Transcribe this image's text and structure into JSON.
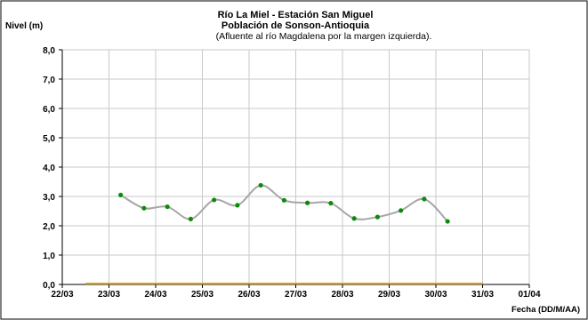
{
  "chart_data": {
    "type": "line",
    "title_lines": [
      "Río La Miel  - Estación San Miguel",
      "Población de Sonson-Antioquia",
      "(Afluente al río Magdalena por la margen izquierda)."
    ],
    "ylabel": "Nivel (m)",
    "xlabel": "Fecha (DD/M/AA)",
    "ylim": [
      0,
      8
    ],
    "y_ticks": [
      "0,0",
      "1,0",
      "2,0",
      "3,0",
      "4,0",
      "5,0",
      "6,0",
      "7,0",
      "8,0"
    ],
    "x_ticks": [
      "22/03",
      "23/03",
      "24/03",
      "25/03",
      "26/03",
      "27/03",
      "28/03",
      "29/03",
      "30/03",
      "31/03",
      "01/04"
    ],
    "grid": true,
    "series": [
      {
        "line_color": "#a6a6a6",
        "marker_color": "#0a8c0a",
        "points": [
          {
            "x": "23/03 06:00",
            "y": 3.05
          },
          {
            "x": "23/03 18:00",
            "y": 2.6
          },
          {
            "x": "24/03 06:00",
            "y": 2.65
          },
          {
            "x": "24/03 18:00",
            "y": 2.23
          },
          {
            "x": "25/03 06:00",
            "y": 2.88
          },
          {
            "x": "25/03 18:00",
            "y": 2.7
          },
          {
            "x": "26/03 06:00",
            "y": 3.38
          },
          {
            "x": "26/03 18:00",
            "y": 2.87
          },
          {
            "x": "27/03 06:00",
            "y": 2.78
          },
          {
            "x": "27/03 18:00",
            "y": 2.77
          },
          {
            "x": "28/03 06:00",
            "y": 2.25
          },
          {
            "x": "28/03 18:00",
            "y": 2.3
          },
          {
            "x": "29/03 06:00",
            "y": 2.52
          },
          {
            "x": "29/03 18:00",
            "y": 2.91
          },
          {
            "x": "30/03 06:00",
            "y": 2.15
          }
        ]
      }
    ],
    "reference_line": {
      "y": 0,
      "color": "#d4a017"
    }
  }
}
